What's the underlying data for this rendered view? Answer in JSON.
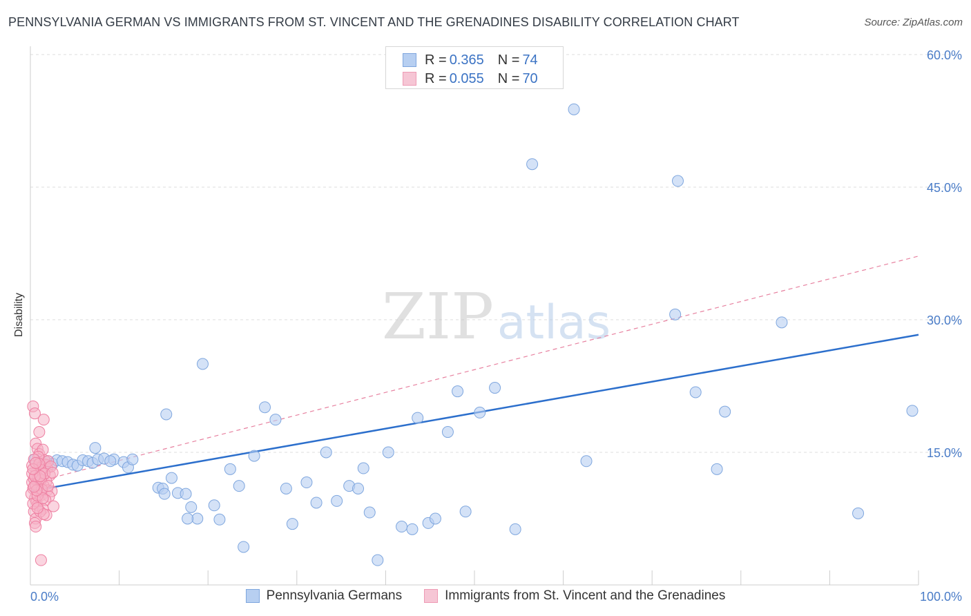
{
  "header": {
    "title": "PENNSYLVANIA GERMAN VS IMMIGRANTS FROM ST. VINCENT AND THE GRENADINES DISABILITY CORRELATION CHART",
    "source": "Source: ZipAtlas.com"
  },
  "watermark": {
    "zip": "ZIP",
    "atlas": "atlas"
  },
  "legend": {
    "rows": [
      {
        "r_label": "R = ",
        "r_value": "0.365",
        "n_label": "N = ",
        "n_value": "74"
      },
      {
        "r_label": "R = ",
        "r_value": "0.055",
        "n_label": "N = ",
        "n_value": "70"
      }
    ]
  },
  "bottom_legend": {
    "series1": "Pennsylvania Germans",
    "series2": "Immigrants from St. Vincent and the Grenadines"
  },
  "colors": {
    "blue_fill": "#b7cff1",
    "blue_stroke": "#7ea6de",
    "blue_line": "#2c6fcc",
    "pink_fill": "#f6b3c7",
    "pink_stroke": "#ee7fa1",
    "pink_line": "#e7809f",
    "tick_label": "#4a7cc7",
    "grid": "#dddddd"
  },
  "chart_data": {
    "type": "scatter",
    "title": "PENNSYLVANIA GERMAN VS IMMIGRANTS FROM ST. VINCENT AND THE GRENADINES DISABILITY CORRELATION CHART",
    "ylabel": "Disability",
    "xlabel": "",
    "xlim": [
      0,
      100
    ],
    "ylim": [
      0,
      60
    ],
    "x_tick_labels": [
      "0.0%",
      "100.0%"
    ],
    "y_ticks": [
      15,
      30,
      45,
      60
    ],
    "y_tick_labels": [
      "15.0%",
      "30.0%",
      "45.0%",
      "60.0%"
    ],
    "grid": "horizontal dashed",
    "legend_position": "top-center",
    "series": [
      {
        "name": "Pennsylvania Germans",
        "R": 0.365,
        "N": 74,
        "trend": {
          "x": [
            0,
            100
          ],
          "y": [
            10.6,
            28.3
          ],
          "style": "solid"
        },
        "points": [
          [
            0.5,
            14.2
          ],
          [
            1.0,
            13.8
          ],
          [
            1.5,
            13.6
          ],
          [
            2.0,
            14.0
          ],
          [
            2.5,
            13.7
          ],
          [
            3.0,
            14.1
          ],
          [
            3.6,
            14.0
          ],
          [
            4.2,
            13.9
          ],
          [
            4.8,
            13.6
          ],
          [
            5.3,
            13.5
          ],
          [
            5.9,
            14.1
          ],
          [
            6.5,
            14.0
          ],
          [
            7.0,
            13.8
          ],
          [
            7.6,
            14.2
          ],
          [
            8.3,
            14.3
          ],
          [
            9.4,
            14.2
          ],
          [
            10.5,
            13.9
          ],
          [
            11.0,
            13.3
          ],
          [
            11.5,
            14.2
          ],
          [
            7.3,
            15.5
          ],
          [
            9.0,
            14.0
          ],
          [
            15.3,
            19.3
          ],
          [
            19.4,
            25.0
          ],
          [
            14.4,
            11.0
          ],
          [
            14.9,
            10.9
          ],
          [
            15.9,
            12.1
          ],
          [
            16.6,
            10.4
          ],
          [
            15.1,
            10.3
          ],
          [
            17.5,
            10.3
          ],
          [
            18.1,
            8.8
          ],
          [
            18.8,
            7.5
          ],
          [
            20.7,
            9.0
          ],
          [
            21.3,
            7.4
          ],
          [
            17.7,
            7.5
          ],
          [
            22.5,
            13.1
          ],
          [
            23.5,
            11.2
          ],
          [
            24.0,
            4.3
          ],
          [
            25.2,
            14.6
          ],
          [
            26.4,
            20.1
          ],
          [
            27.6,
            18.7
          ],
          [
            28.8,
            10.9
          ],
          [
            29.5,
            6.9
          ],
          [
            31.1,
            11.6
          ],
          [
            32.2,
            9.3
          ],
          [
            33.3,
            15.0
          ],
          [
            34.5,
            9.5
          ],
          [
            35.9,
            11.2
          ],
          [
            36.9,
            10.9
          ],
          [
            37.5,
            13.2
          ],
          [
            38.2,
            8.2
          ],
          [
            39.1,
            2.8
          ],
          [
            40.3,
            15.0
          ],
          [
            41.8,
            6.6
          ],
          [
            43.0,
            6.3
          ],
          [
            43.6,
            18.9
          ],
          [
            44.8,
            7.0
          ],
          [
            45.6,
            7.5
          ],
          [
            47.0,
            17.3
          ],
          [
            48.1,
            21.9
          ],
          [
            49.0,
            8.3
          ],
          [
            50.6,
            19.5
          ],
          [
            52.3,
            22.3
          ],
          [
            54.6,
            6.3
          ],
          [
            56.5,
            47.6
          ],
          [
            61.2,
            53.8
          ],
          [
            62.6,
            14.0
          ],
          [
            72.6,
            30.6
          ],
          [
            72.9,
            45.7
          ],
          [
            74.9,
            21.8
          ],
          [
            77.3,
            13.1
          ],
          [
            78.2,
            19.6
          ],
          [
            84.6,
            29.7
          ],
          [
            93.2,
            8.1
          ],
          [
            99.3,
            19.7
          ]
        ]
      },
      {
        "name": "Immigrants from St. Vincent and the Grenadines",
        "R": 0.055,
        "N": 70,
        "trend": {
          "x": [
            0,
            100
          ],
          "y": [
            11.5,
            37.2
          ],
          "style": "dashed"
        },
        "points": [
          [
            0.3,
            20.2
          ],
          [
            0.5,
            19.4
          ],
          [
            0.6,
            16.0
          ],
          [
            0.8,
            15.4
          ],
          [
            1.0,
            14.8
          ],
          [
            1.1,
            13.9
          ],
          [
            0.9,
            13.2
          ],
          [
            0.7,
            12.8
          ],
          [
            0.6,
            12.4
          ],
          [
            0.8,
            11.9
          ],
          [
            0.9,
            11.4
          ],
          [
            1.0,
            11.0
          ],
          [
            1.1,
            10.6
          ],
          [
            1.3,
            10.2
          ],
          [
            0.5,
            9.8
          ],
          [
            0.7,
            9.4
          ],
          [
            0.8,
            9.0
          ],
          [
            0.4,
            8.3
          ],
          [
            0.6,
            7.5
          ],
          [
            0.5,
            7.0
          ],
          [
            0.6,
            6.6
          ],
          [
            1.2,
            2.8
          ],
          [
            1.0,
            17.3
          ],
          [
            1.5,
            18.7
          ],
          [
            1.4,
            15.3
          ],
          [
            1.6,
            14.1
          ],
          [
            1.7,
            13.6
          ],
          [
            1.9,
            13.2
          ],
          [
            1.3,
            12.7
          ],
          [
            2.2,
            12.4
          ],
          [
            1.8,
            11.7
          ],
          [
            1.5,
            11.2
          ],
          [
            1.9,
            10.7
          ],
          [
            2.4,
            10.6
          ],
          [
            2.1,
            10.0
          ],
          [
            1.7,
            9.6
          ],
          [
            2.6,
            8.9
          ],
          [
            1.4,
            8.6
          ],
          [
            1.8,
            7.9
          ],
          [
            1.1,
            8.3
          ],
          [
            0.2,
            11.6
          ],
          [
            0.3,
            10.9
          ],
          [
            0.4,
            12.0
          ],
          [
            0.2,
            13.5
          ],
          [
            0.1,
            10.3
          ],
          [
            0.3,
            9.2
          ],
          [
            0.9,
            14.5
          ],
          [
            1.2,
            13.0
          ],
          [
            2.0,
            14.0
          ],
          [
            2.3,
            13.4
          ],
          [
            0.4,
            14.2
          ],
          [
            0.6,
            11.3
          ],
          [
            0.8,
            10.1
          ],
          [
            0.9,
            12.1
          ],
          [
            1.0,
            13.7
          ],
          [
            1.2,
            11.9
          ],
          [
            1.3,
            10.8
          ],
          [
            1.4,
            9.8
          ],
          [
            1.6,
            12.6
          ],
          [
            2.5,
            12.7
          ],
          [
            0.2,
            12.6
          ],
          [
            0.5,
            12.3
          ],
          [
            0.7,
            10.7
          ],
          [
            1.1,
            12.3
          ],
          [
            0.3,
            13.1
          ],
          [
            0.6,
            13.8
          ],
          [
            1.5,
            8.0
          ],
          [
            0.8,
            8.7
          ],
          [
            0.4,
            11.1
          ],
          [
            2.0,
            11.2
          ]
        ]
      }
    ]
  }
}
